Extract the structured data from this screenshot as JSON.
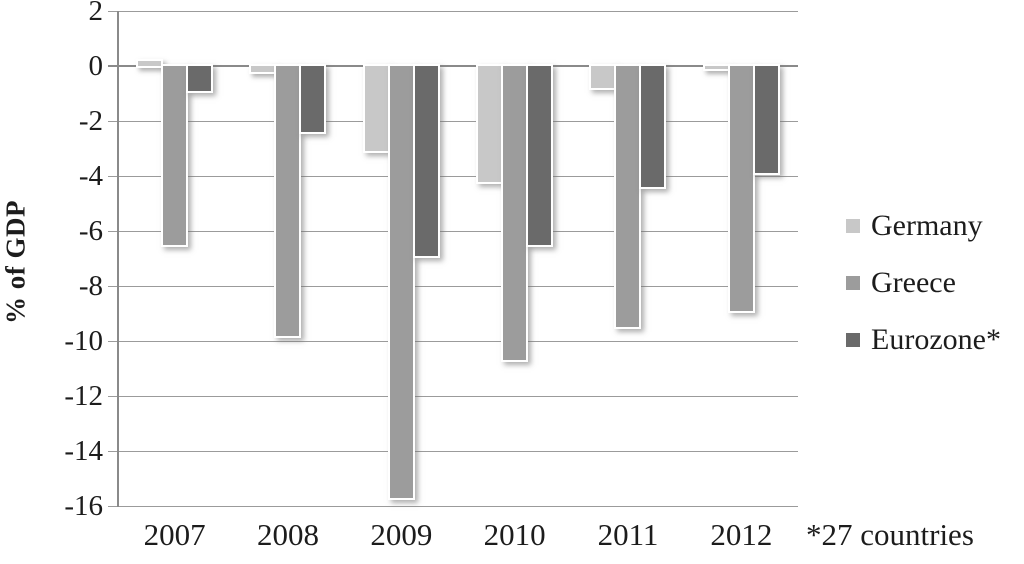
{
  "chart_data": {
    "type": "bar",
    "title": "",
    "ylabel": "% of GDP",
    "xlabel": "",
    "footnote": "*27 countries",
    "categories": [
      "2007",
      "2008",
      "2009",
      "2010",
      "2011",
      "2012"
    ],
    "series": [
      {
        "name": "Germany",
        "color": "#c8c8c8",
        "values": [
          0.2,
          -0.2,
          -3.1,
          -4.2,
          -0.8,
          -0.1
        ]
      },
      {
        "name": "Greece",
        "color": "#9c9c9c",
        "values": [
          -6.5,
          -9.8,
          -15.7,
          -10.7,
          -9.5,
          -8.9
        ]
      },
      {
        "name": "Eurozone*",
        "color": "#6a6a6a",
        "values": [
          -0.9,
          -2.4,
          -6.9,
          -6.5,
          -4.4,
          -3.9
        ]
      }
    ],
    "yticks": [
      2,
      0,
      -2,
      -4,
      -6,
      -8,
      -10,
      -12,
      -14,
      -16
    ],
    "ylim": [
      -16,
      2
    ],
    "grid": "horizontal",
    "legend_position": "right"
  },
  "colors": {
    "background": "#ffffff",
    "gridline": "#9b9b9b",
    "zero_line": "#8a8a8a",
    "axis_line": "#8a8a8a",
    "bar_outline": "#ffffff",
    "text": "#1c1c1c"
  }
}
